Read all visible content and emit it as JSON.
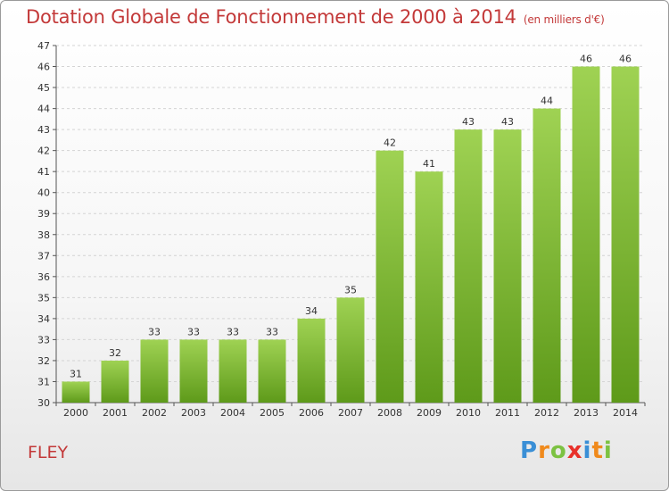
{
  "title": "Dotation Globale de Fonctionnement de 2000 à 2014",
  "unit_note": "(en milliers d'€)",
  "commune": "FLEY",
  "logo_text": "Proxiti",
  "colors": {
    "bar_top": "#9fd253",
    "bar_bottom": "#5e9a1a",
    "title": "#c33939",
    "grid": "#d4d4d4"
  },
  "chart_data": {
    "type": "bar",
    "title": "Dotation Globale de Fonctionnement de 2000 à 2014",
    "subtitle": "(en milliers d'€)",
    "categories": [
      "2000",
      "2001",
      "2002",
      "2003",
      "2004",
      "2005",
      "2006",
      "2007",
      "2008",
      "2009",
      "2010",
      "2011",
      "2012",
      "2013",
      "2014"
    ],
    "values": [
      31,
      32,
      33,
      33,
      33,
      33,
      34,
      35,
      42,
      41,
      43,
      43,
      44,
      46,
      46
    ],
    "xlabel": "",
    "ylabel": "",
    "ylim": [
      30,
      47
    ],
    "yticks": [
      30,
      31,
      32,
      33,
      34,
      35,
      36,
      37,
      38,
      39,
      40,
      41,
      42,
      43,
      44,
      45,
      46,
      47
    ],
    "grid": "horizontal dashed",
    "legend": "none",
    "data_labels": true
  }
}
